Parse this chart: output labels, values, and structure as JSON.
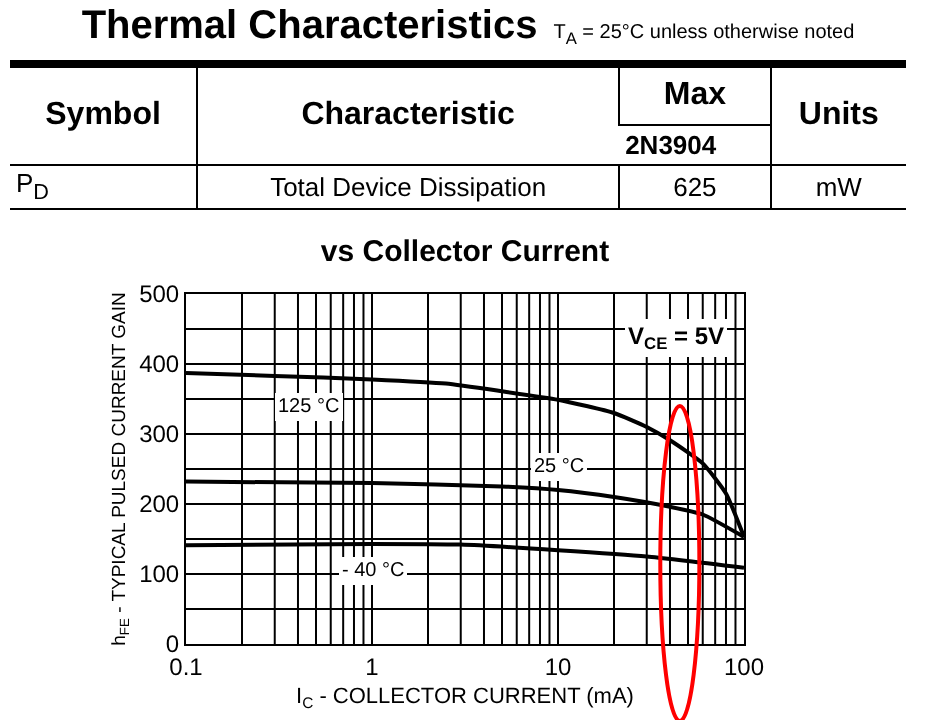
{
  "chart_data": {
    "type": "line",
    "title": "vs Collector Current",
    "xlabel": "I$_{C}$ - COLLECTOR CURRENT (mA)",
    "ylabel": "h$_{FE}$ - TYPICAL PULSED CURRENT GAIN",
    "log": "x",
    "xlim": [
      0.1,
      100
    ],
    "xticks": [
      0.1,
      1,
      10,
      100
    ],
    "ylim": [
      0,
      500
    ],
    "yticks": [
      0,
      100,
      200,
      300,
      400,
      500
    ],
    "grid": true,
    "legend": false,
    "marker": "none",
    "line_style": "solid",
    "series": [
      {
        "name": "125 °C",
        "color": "#000000",
        "x": [
          0.1,
          0.3,
          1,
          2.5,
          5,
          10,
          20,
          30,
          40,
          60,
          80,
          100
        ],
        "values": [
          387,
          383,
          378,
          372,
          361,
          349,
          330,
          310,
          291,
          258,
          215,
          153
        ]
      },
      {
        "name": "25 °C",
        "color": "#000000",
        "x": [
          0.1,
          1,
          5,
          10,
          20,
          40,
          60,
          100
        ],
        "values": [
          232,
          230,
          225,
          220,
          210,
          196,
          185,
          153
        ]
      },
      {
        "name": "- 40 °C",
        "color": "#000000",
        "x": [
          0.1,
          1,
          3,
          10,
          30,
          100
        ],
        "values": [
          141,
          143,
          142,
          134,
          125,
          109
        ]
      }
    ],
    "annotations": [
      "Thermal Characteristics",
      "T$_{A}$ = 25°C unless otherwise noted",
      "Symbol",
      "Characteristic",
      "Max",
      "Units",
      "2N3904",
      "P$_{D}$",
      "Total Device Dissipation",
      "625",
      "mW",
      "V$_{CE}$ = 5V"
    ]
  }
}
